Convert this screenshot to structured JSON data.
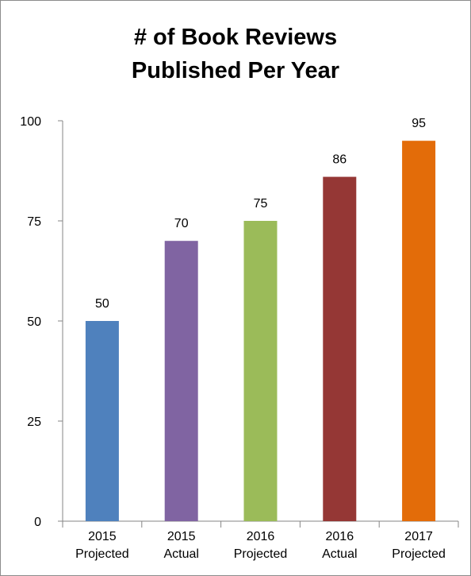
{
  "chart_data": {
    "type": "bar",
    "title_lines": [
      "# of Book Reviews",
      "Published Per Year"
    ],
    "categories": [
      [
        "2015",
        "Projected"
      ],
      [
        "2015",
        "Actual"
      ],
      [
        "2016",
        "Projected"
      ],
      [
        "2016",
        "Actual"
      ],
      [
        "2017",
        "Projected"
      ]
    ],
    "values": [
      50,
      70,
      75,
      86,
      95
    ],
    "colors": [
      "#4f81bd",
      "#8064a2",
      "#9bbb59",
      "#953735",
      "#e36c09"
    ],
    "data_labels": [
      "50",
      "70",
      "75",
      "86",
      "95"
    ],
    "ylim": [
      0,
      100
    ],
    "yticks": [
      0,
      25,
      50,
      75,
      100
    ],
    "grid": false,
    "legend": "none"
  }
}
